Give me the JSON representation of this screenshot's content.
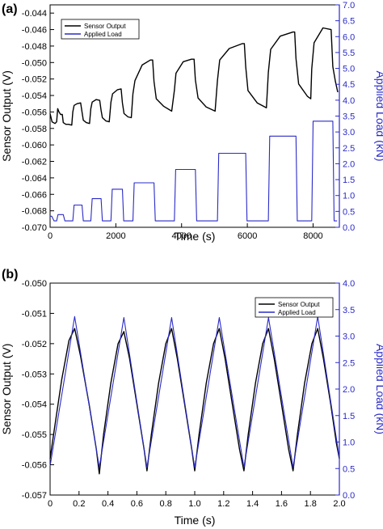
{
  "colors": {
    "sensor": "#000000",
    "load": "#2a2ac8",
    "right_axis": "#2a2ac8"
  },
  "chart_data": [
    {
      "panel": "(a)",
      "type": "line",
      "xlabel": "Time (s)",
      "ylabel": "Sensor Output (V)",
      "y2label": "Applied Load (kN)",
      "xlim": [
        0,
        8800
      ],
      "ylim": [
        -0.07,
        -0.043
      ],
      "y2lim": [
        0.0,
        7.0
      ],
      "xticks": [
        0,
        2000,
        4000,
        6000,
        8000
      ],
      "yticks": [
        -0.07,
        -0.068,
        -0.066,
        -0.064,
        -0.062,
        -0.06,
        -0.058,
        -0.056,
        -0.054,
        -0.052,
        -0.05,
        -0.048,
        -0.046,
        -0.044
      ],
      "ytick_labels": [
        "-0.070",
        "-0.068",
        "-0.066",
        "-0.064",
        "-0.062",
        "-0.060",
        "-0.058",
        "-0.056",
        "-0.054",
        "-0.052",
        "-0.050",
        "-0.048",
        "-0.046",
        "-0.044"
      ],
      "y2ticks": [
        0.0,
        0.5,
        1.0,
        1.5,
        2.0,
        2.5,
        3.0,
        3.5,
        4.0,
        4.5,
        5.0,
        5.5,
        6.0,
        6.5,
        7.0
      ],
      "y2tick_labels": [
        "0.0",
        "0.5",
        "1.0",
        "1.5",
        "2.0",
        "2.5",
        "3.0",
        "3.5",
        "4.0",
        "4.5",
        "5.0",
        "5.5",
        "6.0",
        "6.5",
        "7.0"
      ],
      "legend": {
        "position": "top-left",
        "entries": [
          "Sensor Output",
          "Applied Load"
        ]
      },
      "grid": false,
      "series": [
        {
          "name": "Sensor Output",
          "axis": "left",
          "points": [
            [
              0,
              -0.0562
            ],
            [
              60,
              -0.0572
            ],
            [
              150,
              -0.0574
            ],
            [
              200,
              -0.0572
            ],
            [
              230,
              -0.0556
            ],
            [
              270,
              -0.056
            ],
            [
              320,
              -0.0563
            ],
            [
              370,
              -0.0563
            ],
            [
              400,
              -0.0573
            ],
            [
              480,
              -0.0575
            ],
            [
              560,
              -0.0575
            ],
            [
              660,
              -0.0576
            ],
            [
              690,
              -0.056
            ],
            [
              730,
              -0.0552
            ],
            [
              820,
              -0.055
            ],
            [
              930,
              -0.0549
            ],
            [
              970,
              -0.056
            ],
            [
              1010,
              -0.057
            ],
            [
              1100,
              -0.0573
            ],
            [
              1200,
              -0.0574
            ],
            [
              1240,
              -0.0556
            ],
            [
              1280,
              -0.0548
            ],
            [
              1400,
              -0.0545
            ],
            [
              1510,
              -0.0546
            ],
            [
              1550,
              -0.0558
            ],
            [
              1590,
              -0.0567
            ],
            [
              1700,
              -0.0571
            ],
            [
              1800,
              -0.0572
            ],
            [
              1850,
              -0.0548
            ],
            [
              1900,
              -0.0538
            ],
            [
              2050,
              -0.0533
            ],
            [
              2160,
              -0.0532
            ],
            [
              2200,
              -0.0549
            ],
            [
              2250,
              -0.0562
            ],
            [
              2370,
              -0.0566
            ],
            [
              2470,
              -0.0567
            ],
            [
              2520,
              -0.0538
            ],
            [
              2580,
              -0.0522
            ],
            [
              2800,
              -0.0503
            ],
            [
              3050,
              -0.0497
            ],
            [
              3120,
              -0.0497
            ],
            [
              3160,
              -0.0523
            ],
            [
              3230,
              -0.0544
            ],
            [
              3450,
              -0.0553
            ],
            [
              3700,
              -0.0559
            ],
            [
              3780,
              -0.0534
            ],
            [
              3830,
              -0.0513
            ],
            [
              4050,
              -0.0499
            ],
            [
              4300,
              -0.0496
            ],
            [
              4380,
              -0.0496
            ],
            [
              4420,
              -0.0521
            ],
            [
              4500,
              -0.0543
            ],
            [
              4750,
              -0.0554
            ],
            [
              5020,
              -0.0559
            ],
            [
              5090,
              -0.0522
            ],
            [
              5160,
              -0.0497
            ],
            [
              5450,
              -0.0483
            ],
            [
              5850,
              -0.0477
            ],
            [
              5910,
              -0.0477
            ],
            [
              5950,
              -0.0505
            ],
            [
              6020,
              -0.0534
            ],
            [
              6300,
              -0.0549
            ],
            [
              6580,
              -0.0555
            ],
            [
              6640,
              -0.0512
            ],
            [
              6710,
              -0.0484
            ],
            [
              7000,
              -0.0468
            ],
            [
              7390,
              -0.0463
            ],
            [
              7440,
              -0.0463
            ],
            [
              7480,
              -0.0495
            ],
            [
              7560,
              -0.0526
            ],
            [
              7830,
              -0.0541
            ],
            [
              7930,
              -0.0544
            ],
            [
              7960,
              -0.0508
            ],
            [
              8030,
              -0.0476
            ],
            [
              8300,
              -0.0458
            ],
            [
              8550,
              -0.046
            ],
            [
              8600,
              -0.0505
            ],
            [
              8680,
              -0.0523
            ],
            [
              8750,
              -0.0536
            ]
          ]
        },
        {
          "name": "Applied Load",
          "axis": "right",
          "points": [
            [
              0,
              0.35
            ],
            [
              50,
              0.35
            ],
            [
              120,
              0.2
            ],
            [
              200,
              0.2
            ],
            [
              240,
              0.4
            ],
            [
              400,
              0.4
            ],
            [
              450,
              0.2
            ],
            [
              690,
              0.2
            ],
            [
              730,
              0.7
            ],
            [
              970,
              0.7
            ],
            [
              1010,
              0.2
            ],
            [
              1240,
              0.2
            ],
            [
              1280,
              0.9
            ],
            [
              1550,
              0.9
            ],
            [
              1590,
              0.2
            ],
            [
              1850,
              0.2
            ],
            [
              1890,
              1.2
            ],
            [
              2200,
              1.2
            ],
            [
              2240,
              0.2
            ],
            [
              2520,
              0.2
            ],
            [
              2560,
              1.4
            ],
            [
              3160,
              1.4
            ],
            [
              3200,
              0.2
            ],
            [
              3780,
              0.2
            ],
            [
              3820,
              1.82
            ],
            [
              4420,
              1.82
            ],
            [
              4460,
              0.2
            ],
            [
              5090,
              0.2
            ],
            [
              5130,
              2.33
            ],
            [
              5950,
              2.33
            ],
            [
              5990,
              0.2
            ],
            [
              6640,
              0.2
            ],
            [
              6680,
              2.87
            ],
            [
              7480,
              2.87
            ],
            [
              7520,
              0.2
            ],
            [
              7960,
              0.2
            ],
            [
              8000,
              3.34
            ],
            [
              8600,
              3.34
            ],
            [
              8640,
              0.2
            ],
            [
              8730,
              0.2
            ]
          ]
        }
      ]
    },
    {
      "panel": "(b)",
      "type": "line",
      "xlabel": "Time (s)",
      "ylabel": "Sensor Output (V)",
      "y2label": "Applied Load (kN)",
      "xlim": [
        0.0,
        2.0
      ],
      "ylim": [
        -0.057,
        -0.05
      ],
      "y2lim": [
        0.0,
        4.0
      ],
      "xticks": [
        0.0,
        0.2,
        0.4,
        0.6,
        0.8,
        1.0,
        1.2,
        1.4,
        1.6,
        1.8,
        2.0
      ],
      "xtick_labels": [
        "0",
        "0.2",
        "0.4",
        "0.6",
        "0.8",
        "1.0",
        "1.2",
        "1.4",
        "1.6",
        "1.8",
        "2.0"
      ],
      "yticks": [
        -0.057,
        -0.056,
        -0.055,
        -0.054,
        -0.053,
        -0.052,
        -0.051,
        -0.05
      ],
      "ytick_labels": [
        "-0.057",
        "-0.056",
        "-0.055",
        "-0.054",
        "-0.053",
        "-0.052",
        "-0.051",
        "-0.050"
      ],
      "y2ticks": [
        0.0,
        0.5,
        1.0,
        1.5,
        2.0,
        2.5,
        3.0,
        3.5,
        4.0
      ],
      "y2tick_labels": [
        "0.0",
        "0.5",
        "1.0",
        "1.5",
        "2.0",
        "2.5",
        "3.0",
        "3.5",
        "4.0"
      ],
      "legend": {
        "position": "top-right",
        "entries": [
          "Sensor Output",
          "Applied Load"
        ]
      },
      "grid": false,
      "series": [
        {
          "name": "Sensor Output",
          "axis": "left",
          "points": [
            [
              0.0,
              -0.0558
            ],
            [
              0.03,
              -0.0548
            ],
            [
              0.08,
              -0.0532
            ],
            [
              0.13,
              -0.0519
            ],
            [
              0.17,
              -0.0515
            ],
            [
              0.21,
              -0.0524
            ],
            [
              0.27,
              -0.054
            ],
            [
              0.32,
              -0.0555
            ],
            [
              0.34,
              -0.0563
            ],
            [
              0.37,
              -0.055
            ],
            [
              0.42,
              -0.0533
            ],
            [
              0.47,
              -0.052
            ],
            [
              0.51,
              -0.0516
            ],
            [
              0.55,
              -0.0525
            ],
            [
              0.6,
              -0.054
            ],
            [
              0.65,
              -0.0555
            ],
            [
              0.67,
              -0.0562
            ],
            [
              0.7,
              -0.055
            ],
            [
              0.75,
              -0.0533
            ],
            [
              0.8,
              -0.052
            ],
            [
              0.84,
              -0.0515
            ],
            [
              0.88,
              -0.0525
            ],
            [
              0.93,
              -0.054
            ],
            [
              0.98,
              -0.0555
            ],
            [
              1.0,
              -0.0562
            ],
            [
              1.03,
              -0.055
            ],
            [
              1.08,
              -0.0533
            ],
            [
              1.13,
              -0.052
            ],
            [
              1.17,
              -0.0515
            ],
            [
              1.21,
              -0.0525
            ],
            [
              1.26,
              -0.054
            ],
            [
              1.31,
              -0.0555
            ],
            [
              1.34,
              -0.0562
            ],
            [
              1.37,
              -0.055
            ],
            [
              1.42,
              -0.0533
            ],
            [
              1.47,
              -0.052
            ],
            [
              1.51,
              -0.0515
            ],
            [
              1.55,
              -0.0525
            ],
            [
              1.6,
              -0.054
            ],
            [
              1.65,
              -0.0555
            ],
            [
              1.68,
              -0.0562
            ],
            [
              1.71,
              -0.055
            ],
            [
              1.76,
              -0.0533
            ],
            [
              1.81,
              -0.052
            ],
            [
              1.85,
              -0.0515
            ],
            [
              1.89,
              -0.0525
            ],
            [
              1.94,
              -0.054
            ],
            [
              1.98,
              -0.0553
            ],
            [
              2.0,
              -0.0558
            ]
          ]
        },
        {
          "name": "Applied Load",
          "axis": "right",
          "points": [
            [
              0.0,
              0.55
            ],
            [
              0.17,
              3.37
            ],
            [
              0.34,
              0.52
            ],
            [
              0.51,
              3.35
            ],
            [
              0.67,
              0.52
            ],
            [
              0.84,
              3.35
            ],
            [
              1.0,
              0.52
            ],
            [
              1.17,
              3.35
            ],
            [
              1.34,
              0.52
            ],
            [
              1.51,
              3.35
            ],
            [
              1.68,
              0.52
            ],
            [
              1.85,
              3.37
            ],
            [
              2.0,
              0.7
            ]
          ]
        }
      ]
    }
  ]
}
